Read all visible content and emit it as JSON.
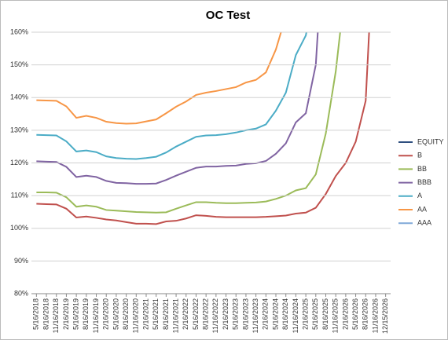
{
  "chart_data": {
    "type": "line",
    "title": "OC Test",
    "categories": [
      "5/16/2018",
      "8/16/2018",
      "11/16/2018",
      "2/16/2019",
      "5/16/2019",
      "8/16/2019",
      "11/16/2019",
      "2/16/2020",
      "5/16/2020",
      "8/16/2020",
      "11/16/2020",
      "2/16/2021",
      "5/16/2021",
      "8/16/2021",
      "11/16/2021",
      "2/16/2022",
      "5/16/2022",
      "8/16/2022",
      "11/16/2022",
      "2/16/2023",
      "5/16/2023",
      "8/16/2023",
      "11/16/2023",
      "2/16/2024",
      "5/16/2024",
      "8/16/2024",
      "11/16/2024",
      "2/16/2025",
      "5/16/2025",
      "8/16/2025",
      "11/16/2025",
      "2/16/2026",
      "5/16/2026",
      "8/16/2026",
      "11/16/2026",
      "12/15/2026"
    ],
    "series": [
      {
        "name": "EQUITY",
        "color": "#2f4f7f",
        "values": [
          null,
          null,
          null,
          null,
          null,
          null,
          null,
          null,
          null,
          null,
          null,
          null,
          null,
          null,
          null,
          null,
          null,
          null,
          null,
          null,
          null,
          null,
          null,
          null,
          null,
          null,
          null,
          null,
          null,
          null,
          null,
          null,
          null,
          null,
          null,
          null
        ]
      },
      {
        "name": "B",
        "color": "#c0504d",
        "values": [
          107.5,
          107.4,
          107.3,
          106,
          103.3,
          103.6,
          103.2,
          102.7,
          102.4,
          101.9,
          101.4,
          101.4,
          101.3,
          102.1,
          102.3,
          103,
          104,
          103.8,
          103.5,
          103.4,
          103.4,
          103.4,
          103.4,
          103.5,
          103.7,
          103.9,
          104.5,
          104.8,
          106.3,
          110.5,
          116,
          120,
          126.5,
          139,
          200,
          null
        ]
      },
      {
        "name": "BB",
        "color": "#9bbb59",
        "values": [
          111,
          111,
          110.9,
          109.5,
          106.6,
          107,
          106.6,
          105.6,
          105.4,
          105.2,
          105,
          104.9,
          104.8,
          104.9,
          106,
          107,
          108,
          108,
          107.8,
          107.7,
          107.7,
          107.8,
          107.9,
          108.2,
          109,
          110,
          111.6,
          112.3,
          116.5,
          129,
          148,
          175,
          null,
          null,
          null,
          null
        ]
      },
      {
        "name": "BBB",
        "color": "#8064a2",
        "values": [
          120.5,
          120.4,
          120.3,
          118.8,
          115.7,
          116.1,
          115.7,
          114.5,
          113.9,
          113.8,
          113.6,
          113.6,
          113.7,
          114.8,
          116.1,
          117.3,
          118.5,
          118.9,
          118.9,
          119.1,
          119.2,
          119.7,
          119.9,
          120.6,
          122.8,
          126,
          132.4,
          135.2,
          150,
          200,
          null,
          null,
          null,
          null,
          null,
          null
        ]
      },
      {
        "name": "A",
        "color": "#4bacc6",
        "values": [
          128.6,
          128.5,
          128.4,
          126.6,
          123.5,
          123.8,
          123.3,
          122,
          121.5,
          121.3,
          121.2,
          121.5,
          121.9,
          123.2,
          125,
          126.5,
          128,
          128.4,
          128.5,
          128.8,
          129.3,
          130,
          130.5,
          131.8,
          136,
          141.5,
          153,
          159,
          175,
          null,
          null,
          null,
          null,
          null,
          null,
          null
        ]
      },
      {
        "name": "AA",
        "color": "#f79646",
        "values": [
          139.2,
          139.1,
          139,
          137.3,
          133.8,
          134.4,
          133.8,
          132.6,
          132.2,
          132,
          132.1,
          132.7,
          133.3,
          135.2,
          137.2,
          138.8,
          140.8,
          141.5,
          142,
          142.6,
          143.2,
          144.6,
          145.4,
          147.7,
          154.7,
          165,
          null,
          null,
          null,
          null,
          null,
          null,
          null,
          null,
          null,
          null
        ]
      },
      {
        "name": "AAA",
        "color": "#7fa8d8",
        "values": [
          null,
          null,
          null,
          null,
          null,
          null,
          null,
          null,
          null,
          null,
          null,
          null,
          null,
          null,
          null,
          null,
          null,
          null,
          null,
          null,
          null,
          null,
          null,
          null,
          null,
          null,
          null,
          null,
          null,
          null,
          null,
          null,
          null,
          null,
          null,
          null
        ]
      }
    ],
    "ylim": [
      80,
      160
    ],
    "yticks": [
      {
        "value": 80,
        "label": "80%"
      },
      {
        "value": 90,
        "label": "90%"
      },
      {
        "value": 100,
        "label": "100%"
      },
      {
        "value": 110,
        "label": "110%"
      },
      {
        "value": 120,
        "label": "120%"
      },
      {
        "value": 130,
        "label": "130%"
      },
      {
        "value": 140,
        "label": "140%"
      },
      {
        "value": 150,
        "label": "150%"
      },
      {
        "value": 160,
        "label": "160%"
      }
    ],
    "grid": true,
    "legend": "right"
  }
}
